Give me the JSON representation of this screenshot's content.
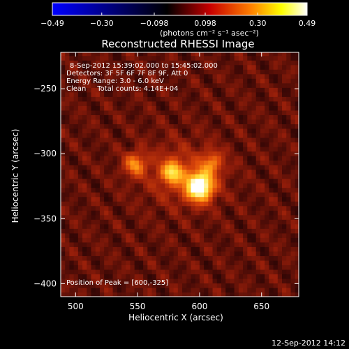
{
  "chart_data": {
    "type": "heatmap",
    "title": "Reconstructed RHESSI Image",
    "xlabel": "Heliocentric X (arcsec)",
    "ylabel": "Heliocentric Y (arcsec)",
    "xlim": [
      488,
      680
    ],
    "ylim": [
      -410,
      -222
    ],
    "x_ticks": [
      500,
      550,
      600,
      650
    ],
    "x_tick_labels": [
      "500",
      "550",
      "600",
      "650"
    ],
    "y_ticks": [
      -250,
      -300,
      -350,
      -400
    ],
    "y_tick_labels": [
      "−250",
      "−300",
      "−350",
      "−400"
    ],
    "colorbar": {
      "ticks": [
        -0.49,
        -0.3,
        -0.098,
        0.098,
        0.3,
        0.49
      ],
      "tick_labels": [
        "−0.49",
        "−0.30",
        "−0.098",
        "0.098",
        "0.30",
        "0.49"
      ],
      "unit_label": "(photons cm⁻² s⁻¹ asec⁻²)",
      "colormap_stops": [
        "#0000ff",
        "#000000",
        "#c80000",
        "#ff8000",
        "#ffff00",
        "#ffffff"
      ]
    },
    "annotations": [
      "8-Sep-2012 15:39:02.000 to 15:45:02.000",
      "Detectors: 3F 5F 6F 7F 8F 9F, Att 0",
      "Energy Range: 3.0 - 6.0 keV",
      "Clean     Total counts: 4.14E+04"
    ],
    "peak_label": "Position of Peak = [600,-325]",
    "sources": [
      {
        "x": 600,
        "y": -325,
        "peak": 0.49
      },
      {
        "x": 578,
        "y": -314,
        "peak": 0.28
      },
      {
        "x": 548,
        "y": -308,
        "peak": 0.22
      },
      {
        "x": 610,
        "y": -307,
        "peak": 0.18
      }
    ],
    "background_level": 0.06
  },
  "footer": {
    "timestamp": "12-Sep-2012 14:12"
  }
}
